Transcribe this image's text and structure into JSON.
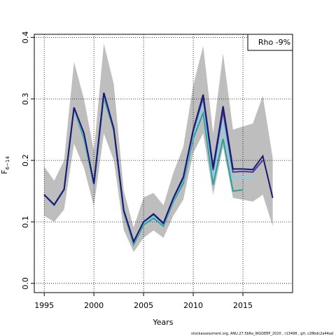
{
  "chart_data": {
    "type": "line",
    "ylabel": "F",
    "ylabel_sub": "6−14",
    "xlabel": "Years",
    "annotation": "Rho -9%",
    "footer": "stockassessment.org, ANU.27.5b6a_WGDEEP_2020 , r13498 , git: c28bdc2a44ad",
    "x": [
      1995,
      1996,
      1997,
      1998,
      1999,
      2000,
      2001,
      2002,
      2003,
      2004,
      2005,
      2006,
      2007,
      2008,
      2009,
      2010,
      2011,
      2012,
      2013,
      2014,
      2015,
      2016,
      2017,
      2018
    ],
    "band": {
      "color": "#bebebe",
      "upper": [
        0.19,
        0.167,
        0.2,
        0.36,
        0.3,
        0.215,
        0.39,
        0.324,
        0.151,
        0.091,
        0.14,
        0.147,
        0.127,
        0.18,
        0.222,
        0.322,
        0.386,
        0.244,
        0.374,
        0.25,
        0.255,
        0.26,
        0.305,
        0.204
      ],
      "lower": [
        0.11,
        0.1,
        0.12,
        0.227,
        0.188,
        0.125,
        0.244,
        0.2,
        0.087,
        0.051,
        0.074,
        0.086,
        0.074,
        0.11,
        0.136,
        0.212,
        0.244,
        0.144,
        0.222,
        0.139,
        0.136,
        0.133,
        0.144,
        0.093
      ]
    },
    "series": [
      {
        "color": "#2aa198",
        "values": [
          0.144,
          0.127,
          0.152,
          0.284,
          0.235,
          0.16,
          0.302,
          0.248,
          0.116,
          0.063,
          0.095,
          0.106,
          0.093,
          0.133,
          0.163,
          0.236,
          0.277,
          0.16,
          0.235,
          0.15,
          0.152,
          null,
          null,
          null
        ]
      },
      {
        "color": "#87ceeb",
        "values": [
          0.144,
          0.128,
          0.153,
          0.285,
          0.24,
          0.161,
          0.306,
          0.25,
          0.118,
          0.066,
          0.098,
          0.109,
          0.096,
          0.136,
          0.168,
          0.243,
          0.292,
          0.175,
          0.262,
          0.17,
          0.172,
          0.172,
          null,
          null
        ]
      },
      {
        "color": "#4b3c9e",
        "values": [
          0.144,
          0.128,
          0.153,
          0.286,
          0.243,
          0.162,
          0.309,
          0.251,
          0.119,
          0.067,
          0.1,
          0.112,
          0.097,
          0.138,
          0.171,
          0.248,
          0.302,
          0.184,
          0.28,
          0.181,
          0.182,
          0.181,
          0.2,
          null
        ]
      },
      {
        "color": "#1a1a6e",
        "values": [
          0.144,
          0.128,
          0.153,
          0.286,
          0.244,
          0.162,
          0.31,
          0.252,
          0.119,
          0.068,
          0.1,
          0.113,
          0.098,
          0.139,
          0.173,
          0.25,
          0.307,
          0.188,
          0.288,
          0.186,
          0.186,
          0.185,
          0.207,
          0.139
        ]
      }
    ],
    "xlim": [
      1994,
      2020
    ],
    "ylim": [
      -0.015,
      0.405
    ],
    "xticks": [
      1995,
      2000,
      2005,
      2010,
      2015
    ],
    "yticks": [
      {
        "value": 0,
        "label": "0.0"
      },
      0.1,
      0.2,
      0.3,
      0.4
    ],
    "grid": true
  }
}
